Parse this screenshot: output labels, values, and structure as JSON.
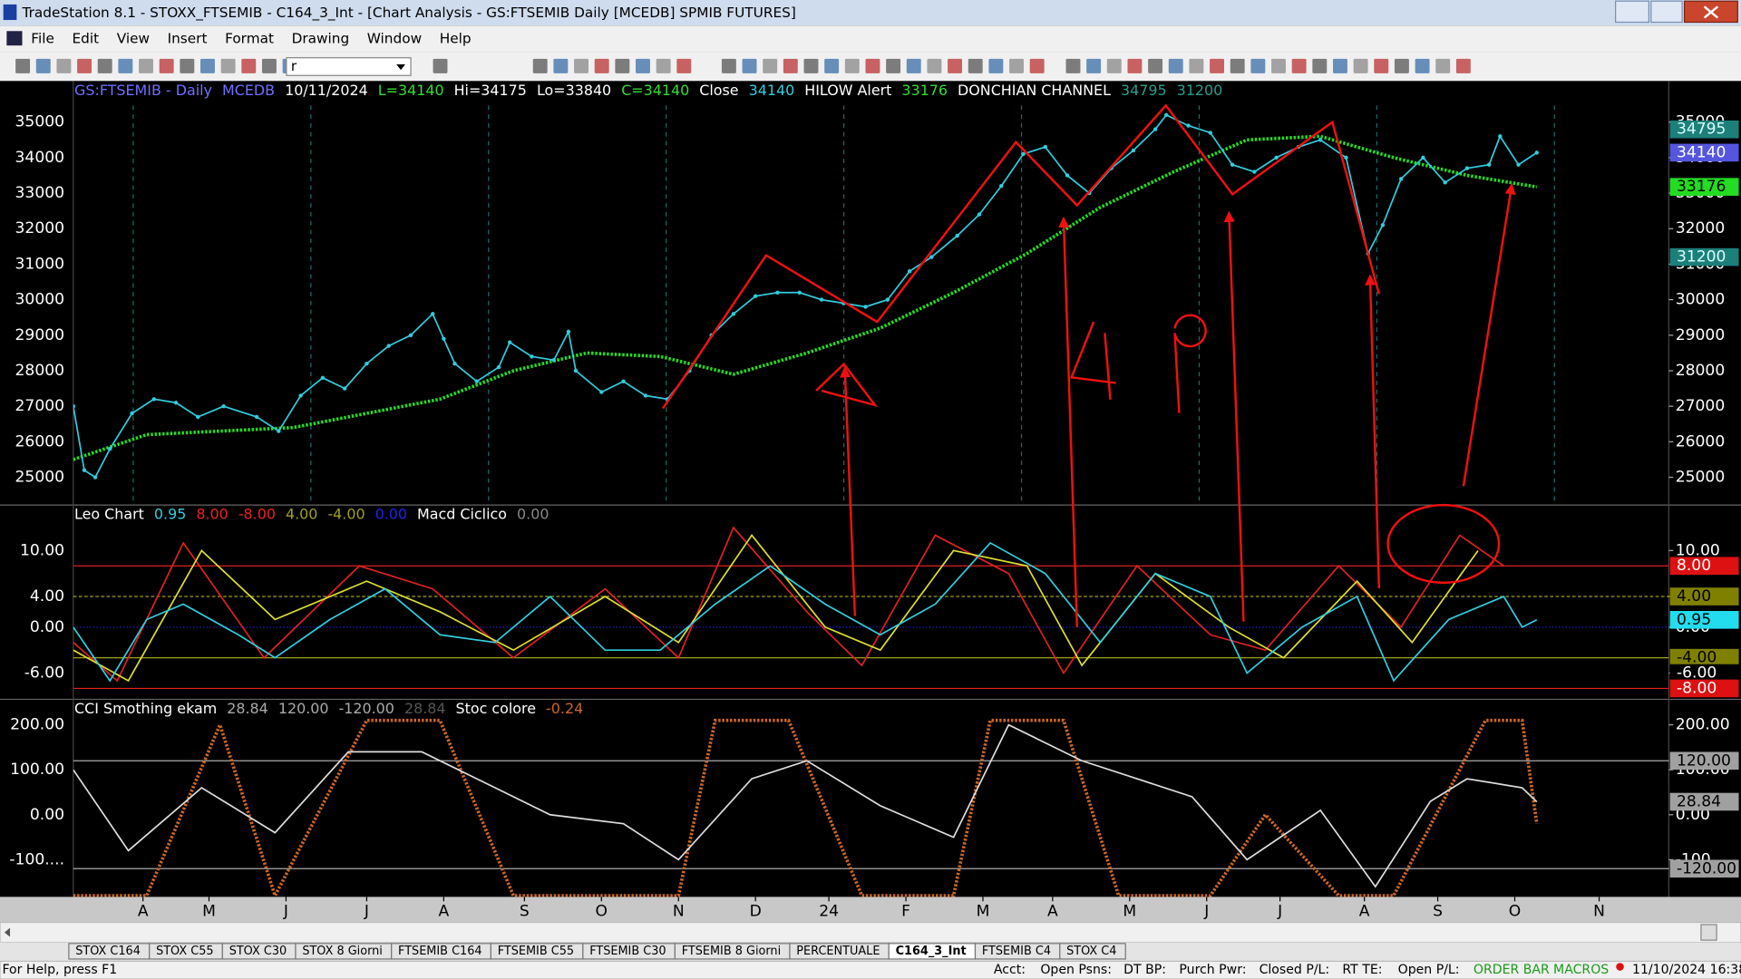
{
  "window": {
    "title": "TradeStation 8.1 - STOXX_FTSEMIB - C164_3_Int - [Chart Analysis - GS:FTSEMIB Daily  [MCEDB] SPMIB FUTURES]",
    "menu": [
      "File",
      "Edit",
      "View",
      "Insert",
      "Format",
      "Drawing",
      "Window",
      "Help"
    ],
    "combo": "r"
  },
  "chart": {
    "xlim": [
      0,
      435
    ],
    "xticks": [
      {
        "value": 19,
        "label": "A"
      },
      {
        "value": 37,
        "label": "M"
      },
      {
        "value": 58,
        "label": "J"
      },
      {
        "value": 80,
        "label": "J"
      },
      {
        "value": 101,
        "label": "A"
      },
      {
        "value": 123,
        "label": "S"
      },
      {
        "value": 144,
        "label": "O"
      },
      {
        "value": 165,
        "label": "N"
      },
      {
        "value": 186,
        "label": "D"
      },
      {
        "value": 206,
        "label": "24"
      },
      {
        "value": 227,
        "label": "F"
      },
      {
        "value": 248,
        "label": "M"
      },
      {
        "value": 267,
        "label": "A"
      },
      {
        "value": 288,
        "label": "M"
      },
      {
        "value": 309,
        "label": "J"
      },
      {
        "value": 329,
        "label": "J"
      },
      {
        "value": 352,
        "label": "A"
      },
      {
        "value": 372,
        "label": "S"
      },
      {
        "value": 393,
        "label": "O"
      },
      {
        "value": 416,
        "label": "N"
      }
    ],
    "panes": [
      {
        "header": [
          {
            "text": "GS:FTSEMIB - Daily",
            "color": "#6f6fff"
          },
          {
            "text": "MCEDB",
            "color": "#6f6fff"
          },
          {
            "text": "10/11/2024",
            "color": "#ffffff"
          },
          {
            "text": "L=34140",
            "color": "#33dd33"
          },
          {
            "text": "Hi=34175",
            "color": "#ffffff"
          },
          {
            "text": "Lo=33840",
            "color": "#ffffff"
          },
          {
            "text": "C=34140",
            "color": "#33dd33"
          },
          {
            "text": "Close",
            "color": "#ffffff"
          },
          {
            "text": "34140",
            "color": "#33ccdd"
          },
          {
            "text": "HILOW Alert",
            "color": "#ffffff"
          },
          {
            "text": "33176",
            "color": "#33dd33"
          },
          {
            "text": "DONCHIAN CHANNEL",
            "color": "#ffffff"
          },
          {
            "text": "34795",
            "color": "#2a9d8f"
          },
          {
            "text": "31200",
            "color": "#2a9d8f"
          }
        ],
        "ylim": [
          24219,
          36156
        ],
        "yticks": [
          25000,
          26000,
          27000,
          28000,
          29000,
          30000,
          31000,
          32000,
          33000,
          34000,
          35000
        ],
        "left_axis": true,
        "levels": [],
        "badges": [
          {
            "value": 34795,
            "bg": "#1d7f7a",
            "fg": "#d8ffff"
          },
          {
            "value": 34140,
            "bg": "#5555e0",
            "fg": "#ffffff"
          },
          {
            "value": 33176,
            "bg": "#22dd22",
            "fg": "#000000"
          },
          {
            "value": 31200,
            "bg": "#1d7f7a",
            "fg": "#d8ffff"
          }
        ],
        "series": [
          {
            "color": "#22dd22",
            "style": "dotted",
            "x": [
              0,
              20,
              40,
              60,
              80,
              100,
              120,
              140,
              160,
              180,
              200,
              220,
              240,
              260,
              280,
              300,
              320,
              340,
              360,
              380,
              399
            ],
            "values": [
              25500,
              26200,
              26300,
              26400,
              26800,
              27200,
              28000,
              28500,
              28400,
              27900,
              28500,
              29200,
              30200,
              31300,
              32600,
              33600,
              34500,
              34600,
              34000,
              33500,
              33176
            ]
          },
          {
            "color": "#33ccdd",
            "style": "dots",
            "x": [
              0,
              3,
              6,
              10,
              16,
              22,
              28,
              34,
              41,
              50,
              56,
              62,
              68,
              74,
              80,
              86,
              92,
              98,
              101,
              104,
              110,
              116,
              119,
              125,
              131,
              135,
              137,
              144,
              150,
              156,
              162,
              168,
              174,
              180,
              186,
              192,
              198,
              204,
              210,
              216,
              222,
              228,
              234,
              241,
              247,
              253,
              259,
              265,
              271,
              277,
              283,
              289,
              295,
              298,
              304,
              310,
              316,
              322,
              328,
              334,
              340,
              347,
              353,
              357,
              362,
              368,
              374,
              380,
              386,
              389,
              394,
              399
            ],
            "values": [
              27000,
              25200,
              25000,
              25800,
              26800,
              27200,
              27100,
              26700,
              27000,
              26700,
              26300,
              27300,
              27800,
              27500,
              28200,
              28700,
              29000,
              29600,
              28900,
              28200,
              27700,
              28100,
              28800,
              28400,
              28300,
              29100,
              28000,
              27400,
              27700,
              27300,
              27200,
              28000,
              29000,
              29600,
              30100,
              30200,
              30200,
              30000,
              29900,
              29800,
              30000,
              30800,
              31200,
              31800,
              32400,
              33200,
              34100,
              34300,
              33500,
              33000,
              33700,
              34200,
              34800,
              35200,
              34900,
              34700,
              33800,
              33600,
              34000,
              34300,
              34500,
              34000,
              31300,
              32100,
              33400,
              34000,
              33300,
              33700,
              33800,
              34600,
              33800,
              34140
            ]
          }
        ]
      },
      {
        "header": [
          {
            "text": "Leo Chart",
            "color": "#ffffff"
          },
          {
            "text": "0.95",
            "color": "#33ccdd"
          },
          {
            "text": "8.00",
            "color": "#ee2222"
          },
          {
            "text": "-8.00",
            "color": "#ee2222"
          },
          {
            "text": "4.00",
            "color": "#a0a020"
          },
          {
            "text": "-4.00",
            "color": "#a0a020"
          },
          {
            "text": "0.00",
            "color": "#2222ee"
          },
          {
            "text": "Macd Ciclico",
            "color": "#ffffff"
          },
          {
            "text": "0.00",
            "color": "#888888"
          }
        ],
        "ylim": [
          -9.42,
          15.94
        ],
        "yticks": [
          {
            "value": -6,
            "label": "-6.00"
          },
          {
            "value": 0,
            "label": "0.00"
          },
          {
            "value": 4,
            "label": "4.00"
          },
          {
            "value": 10,
            "label": "10.00"
          }
        ],
        "left_axis": true,
        "levels": [
          {
            "value": 8,
            "color": "#dd2222",
            "dash": "none"
          },
          {
            "value": -8,
            "color": "#dd2222",
            "dash": "none"
          },
          {
            "value": 4,
            "color": "#a0a020",
            "dash": "3 2"
          },
          {
            "value": -4,
            "color": "#a0a020",
            "dash": "none"
          },
          {
            "value": 0,
            "color": "#2222ee",
            "dash": "1 2"
          }
        ],
        "badges": [
          {
            "value": 8,
            "label": "8.00",
            "bg": "#dd1111",
            "fg": "#ffffff"
          },
          {
            "value": 4,
            "label": "4.00",
            "bg": "#808000",
            "fg": "#000000"
          },
          {
            "value": 0.95,
            "label": "0.95",
            "bg": "#22ddee",
            "fg": "#000000"
          },
          {
            "value": -4,
            "label": "-4.00",
            "bg": "#808000",
            "fg": "#000000"
          },
          {
            "value": -6,
            "label": "-6.00",
            "bg": "#000000",
            "fg": "#ffffff"
          },
          {
            "value": -8,
            "label": "-8.00",
            "bg": "#dd1111",
            "fg": "#ffffff"
          }
        ],
        "series": [
          {
            "color": "#dd2222",
            "style": "line",
            "x": [
              0,
              12,
              30,
              52,
              78,
              98,
              120,
              145,
              165,
              180,
              200,
              215,
              235,
              255,
              270,
              290,
              310,
              325,
              345,
              362,
              378,
              390
            ],
            "values": [
              -2,
              -7,
              11,
              -4,
              8,
              5,
              -4,
              5,
              -4,
              13,
              2,
              -5,
              12,
              7,
              -6,
              8,
              -1,
              -3,
              8,
              0,
              12,
              8
            ]
          },
          {
            "color": "#dddd33",
            "style": "line",
            "x": [
              0,
              15,
              35,
              55,
              80,
              100,
              120,
              145,
              165,
              185,
              205,
              220,
              240,
              260,
              275,
              295,
              315,
              330,
              350,
              365,
              383
            ],
            "values": [
              -3,
              -7,
              10,
              1,
              6,
              2,
              -3,
              4,
              -2,
              12,
              0,
              -3,
              10,
              8,
              -5,
              7,
              0,
              -4,
              6,
              -2,
              10
            ]
          },
          {
            "color": "#33ccdd",
            "style": "line",
            "x": [
              0,
              10,
              20,
              30,
              45,
              55,
              70,
              85,
              100,
              115,
              130,
              145,
              160,
              175,
              190,
              205,
              220,
              235,
              250,
              265,
              280,
              295,
              310,
              320,
              335,
              350,
              360,
              375,
              390,
              395,
              399
            ],
            "values": [
              0,
              -7,
              1,
              3,
              -1,
              -4,
              1,
              5,
              -1,
              -2,
              4,
              -3,
              -3,
              3,
              8,
              3,
              -1,
              3,
              11,
              7,
              -2,
              7,
              4,
              -6,
              0,
              4,
              -7,
              1,
              4,
              0,
              0.95
            ]
          }
        ]
      },
      {
        "header": [
          {
            "text": "CCI Smothing ekam",
            "color": "#ffffff"
          },
          {
            "text": "28.84",
            "color": "#aaaaaa"
          },
          {
            "text": "120.00",
            "color": "#aaaaaa"
          },
          {
            "text": "-120.00",
            "color": "#aaaaaa"
          },
          {
            "text": "28.84",
            "color": "#555555"
          },
          {
            "text": "Stoc colore",
            "color": "#ffffff"
          },
          {
            "text": "-0.24",
            "color": "#cc6622"
          }
        ],
        "ylim": [
          -182.7,
          256.8
        ],
        "yticks": [
          {
            "value": -100,
            "label": "-100...."
          },
          {
            "value": 0,
            "label": "0.00"
          },
          {
            "value": 100,
            "label": "100.00"
          },
          {
            "value": 200,
            "label": "200.00"
          }
        ],
        "left_axis": true,
        "levels": [
          {
            "value": 120,
            "color": "#aaaaaa",
            "dash": "none"
          },
          {
            "value": -120,
            "color": "#aaaaaa",
            "dash": "none"
          }
        ],
        "badges": [
          {
            "value": 120,
            "label": "120.00",
            "bg": "#a0a0a0",
            "fg": "#000000"
          },
          {
            "value": 28.84,
            "label": "28.84",
            "bg": "#a0a0a0",
            "fg": "#000000"
          },
          {
            "value": -120,
            "label": "-120.00",
            "bg": "#a0a0a0",
            "fg": "#000000"
          }
        ],
        "series": [
          {
            "color": "#cc6622",
            "style": "dotted",
            "x": [
              0,
              20,
              40,
              55,
              80,
              100,
              120,
              165,
              175,
              195,
              215,
              240,
              250,
              270,
              285,
              310,
              325,
              345,
              360,
              385,
              395,
              399
            ],
            "values": [
              -180,
              -180,
              200,
              -180,
              210,
              210,
              -180,
              -180,
              210,
              210,
              -180,
              -180,
              210,
              210,
              -180,
              -180,
              0,
              -180,
              -180,
              210,
              210,
              -20
            ]
          },
          {
            "color": "#dddddd",
            "style": "line",
            "x": [
              0,
              15,
              35,
              55,
              75,
              95,
              115,
              130,
              150,
              165,
              185,
              200,
              220,
              240,
              255,
              275,
              290,
              305,
              320,
              340,
              355,
              370,
              380,
              395,
              399
            ],
            "values": [
              100,
              -80,
              60,
              -40,
              140,
              140,
              60,
              0,
              -20,
              -100,
              80,
              120,
              20,
              -50,
              200,
              120,
              80,
              40,
              -100,
              10,
              -160,
              30,
              80,
              60,
              28.84
            ]
          }
        ]
      }
    ]
  },
  "tabs": [
    "STOX C164",
    "STOX C55",
    "STOX  C30",
    "STOX  8 Giorni",
    "FTSEMIB C164",
    "FTSEMIB C55",
    "FTSEMIB C30",
    "FTSEMIB  8 Giorni",
    "PERCENTUALE",
    "C164_3_Int",
    "FTSEMIB C4",
    "STOX C4"
  ],
  "active_tab": 9,
  "status": {
    "help": "For Help, press F1",
    "acct": "Acct:",
    "open_psns": "Open Psns:",
    "dt_bp": "DT BP:",
    "purch_pwr": "Purch Pwr:",
    "closed_pl": "Closed P/L:",
    "rt_te": "RT TE:",
    "open_pl": "Open P/L:",
    "order_bar": "ORDER BAR",
    "macros": "MACROS",
    "clock": "11/10/2024 16:38"
  }
}
